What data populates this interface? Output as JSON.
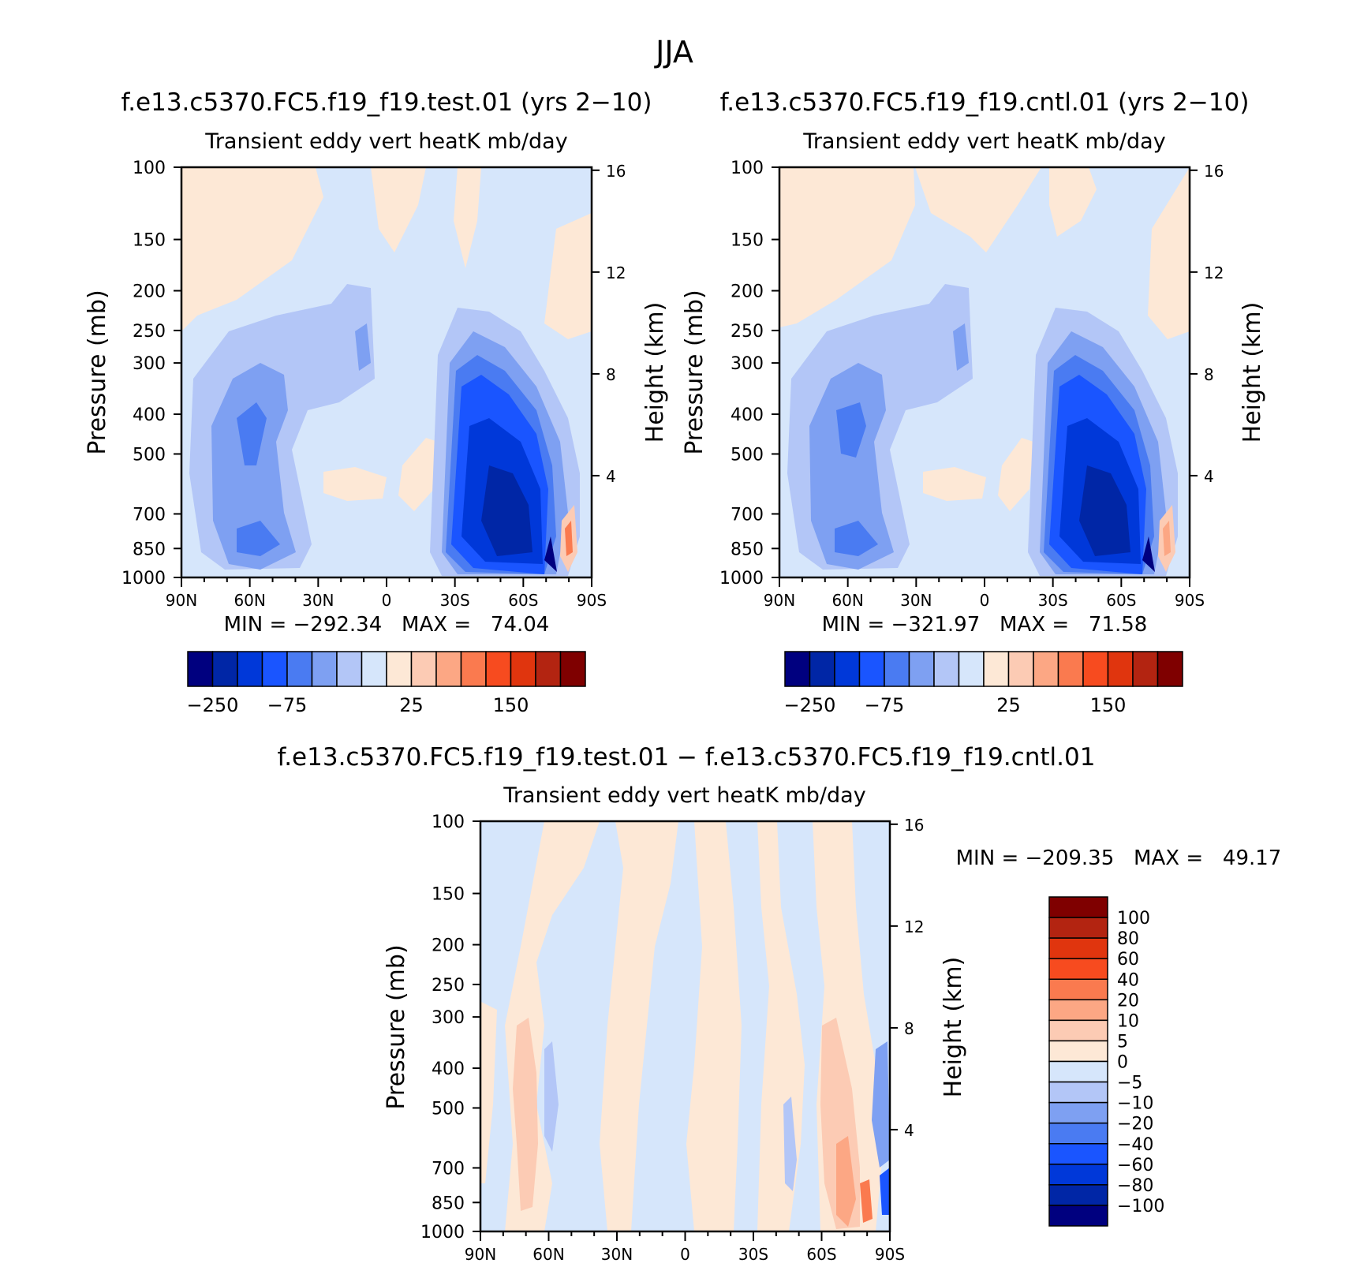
{
  "figure": {
    "title": "JJA"
  },
  "colors": {
    "panel_scale": [
      "#00007f",
      "#0026a6",
      "#0038d9",
      "#1a55ff",
      "#4a7bf2",
      "#7ea0f2",
      "#b3c6f7",
      "#d6e6fb",
      "#fde8d6",
      "#fccbb4",
      "#fca784",
      "#fa7a4f",
      "#f74b1f",
      "#e0350e",
      "#b32411",
      "#7f0000"
    ],
    "diff_scale": [
      "#00007f",
      "#0026a6",
      "#0038d9",
      "#1a55ff",
      "#4a7bf2",
      "#7ea0f2",
      "#b3c6f7",
      "#d6e6fb",
      "#fde8d6",
      "#fccbb4",
      "#fca784",
      "#fa7a4f",
      "#f74b1f",
      "#e0350e",
      "#b32411",
      "#7f0000"
    ]
  },
  "chart_data": [
    {
      "type": "heatmap",
      "title": "f.e13.c5370.FC5.f19_f19.test.01 (yrs 2−10)",
      "subtitle": "Transient eddy vert heatK mb/day",
      "ylabel": "Pressure (mb)",
      "y2label": "Height (km)",
      "x_ticks": [
        "90N",
        "60N",
        "30N",
        "0",
        "30S",
        "60S",
        "90S"
      ],
      "y_ticks": [
        100,
        150,
        200,
        250,
        300,
        400,
        500,
        700,
        850,
        1000
      ],
      "y_scale": "log-pressure",
      "y2_ticks": [
        16,
        12,
        8,
        4
      ],
      "stats": "MIN = −292.34   MAX =   74.04",
      "colorbar_labels": [
        "−250",
        "−75",
        "25",
        "150"
      ],
      "colorbar_orientation": "horizontal",
      "min": -292.34,
      "max": 74.04
    },
    {
      "type": "heatmap",
      "title": "f.e13.c5370.FC5.f19_f19.cntl.01 (yrs 2−10)",
      "subtitle": "Transient eddy vert heatK mb/day",
      "ylabel": "Pressure (mb)",
      "y2label": "Height (km)",
      "x_ticks": [
        "90N",
        "60N",
        "30N",
        "0",
        "30S",
        "60S",
        "90S"
      ],
      "y_ticks": [
        100,
        150,
        200,
        250,
        300,
        400,
        500,
        700,
        850,
        1000
      ],
      "y_scale": "log-pressure",
      "y2_ticks": [
        16,
        12,
        8,
        4
      ],
      "stats": "MIN = −321.97   MAX =   71.58",
      "colorbar_labels": [
        "−250",
        "−75",
        "25",
        "150"
      ],
      "colorbar_orientation": "horizontal",
      "min": -321.97,
      "max": 71.58
    },
    {
      "type": "heatmap",
      "title": "f.e13.c5370.FC5.f19_f19.test.01 − f.e13.c5370.FC5.f19_f19.cntl.01",
      "subtitle": "Transient eddy vert heatK mb/day",
      "ylabel": "Pressure (mb)",
      "y2label": "Height (km)",
      "x_ticks": [
        "90N",
        "60N",
        "30N",
        "0",
        "30S",
        "60S",
        "90S"
      ],
      "y_ticks": [
        100,
        150,
        200,
        250,
        300,
        400,
        500,
        700,
        850,
        1000
      ],
      "y_scale": "log-pressure",
      "y2_ticks": [
        16,
        12,
        8,
        4
      ],
      "stats": "MIN = −209.35   MAX =   49.17",
      "colorbar_labels": [
        "100",
        "80",
        "60",
        "40",
        "20",
        "10",
        "5",
        "0",
        "−5",
        "−10",
        "−20",
        "−40",
        "−60",
        "−80",
        "−100"
      ],
      "colorbar_orientation": "vertical",
      "min": -209.35,
      "max": 49.17
    }
  ]
}
